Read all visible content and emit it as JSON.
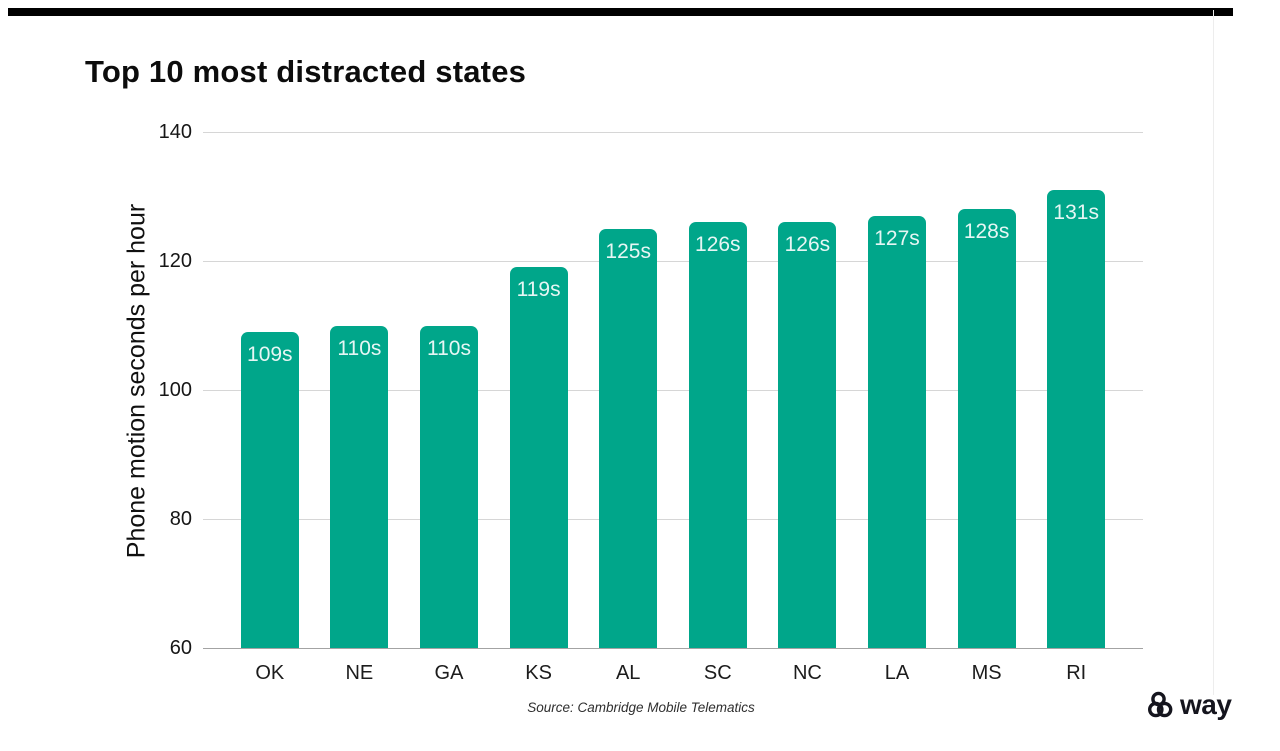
{
  "page": {
    "title": "Top 10 most distracted states",
    "source": "Source: Cambridge Mobile Telematics",
    "brand": {
      "name": "way",
      "color": "#15151e"
    }
  },
  "chart_data": {
    "type": "bar",
    "title": "Top 10 most distracted states",
    "categories": [
      "OK",
      "NE",
      "GA",
      "KS",
      "AL",
      "SC",
      "NC",
      "LA",
      "MS",
      "RI"
    ],
    "values": [
      109,
      110,
      110,
      119,
      125,
      126,
      126,
      127,
      128,
      131
    ],
    "value_labels": [
      "109s",
      "110s",
      "110s",
      "119s",
      "125s",
      "126s",
      "126s",
      "127s",
      "128s",
      "131s"
    ],
    "xlabel": "",
    "ylabel": "Phone motion seconds per hour",
    "ylim": [
      60,
      140
    ],
    "yticks": [
      60,
      80,
      100,
      120,
      140
    ],
    "grid": true,
    "legend": false,
    "source": "Source: Cambridge Mobile Telematics",
    "colors": {
      "bar": "#00a68a",
      "bar_value_label": "rgba(255,255,255,0.9)",
      "gridline": "#d6d6d6",
      "baseline": "#a3a3a3"
    }
  }
}
